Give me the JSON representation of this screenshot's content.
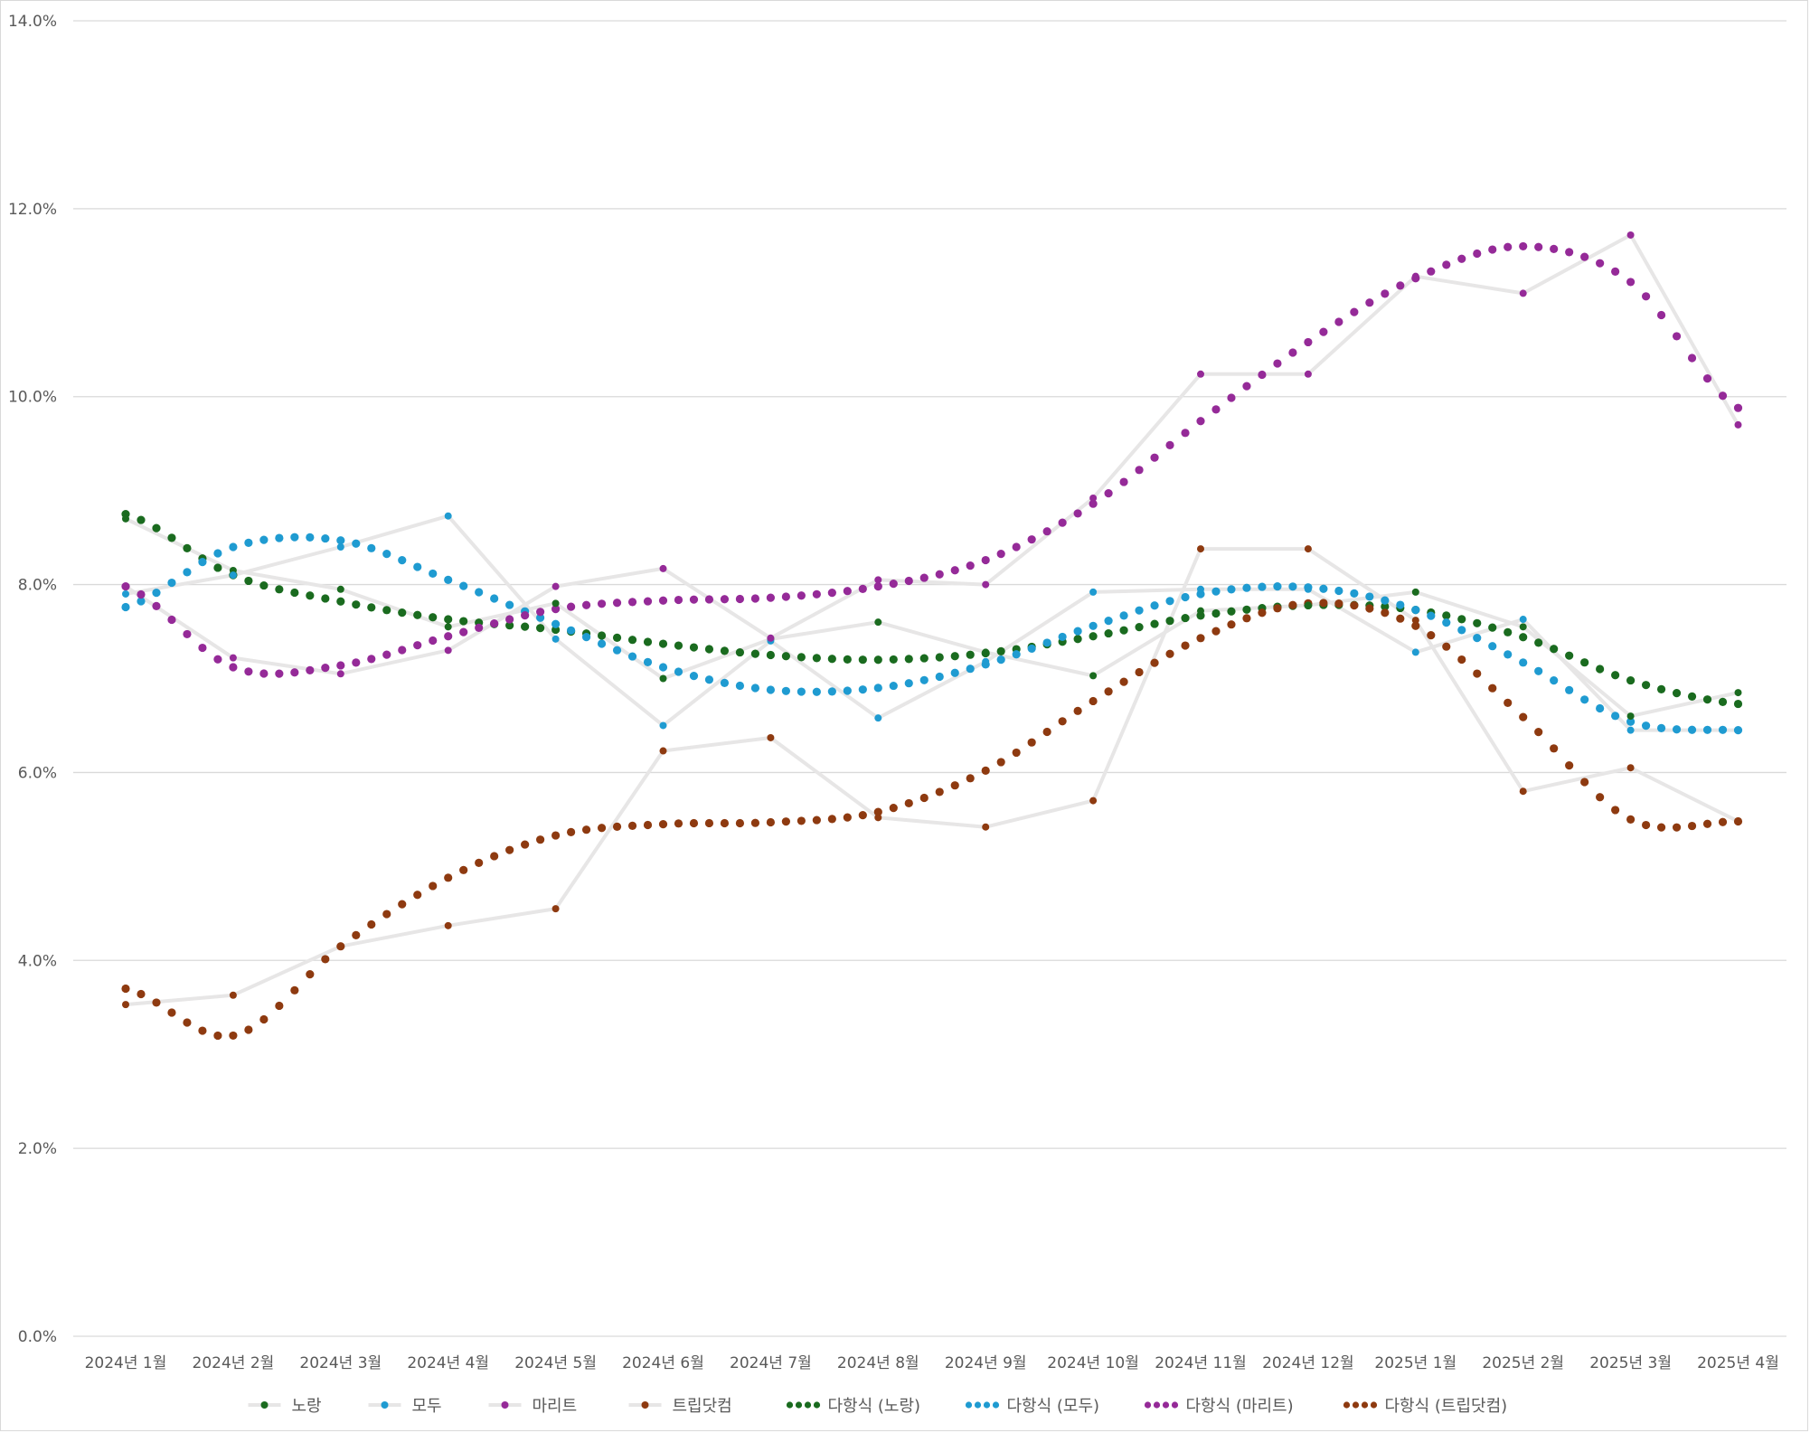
{
  "chart_data": {
    "type": "line",
    "title": "",
    "xlabel": "",
    "ylabel": "",
    "categories": [
      "2024년 1월",
      "2024년 2월",
      "2024년 3월",
      "2024년 4월",
      "2024년 5월",
      "2024년 6월",
      "2024년 7월",
      "2024년 8월",
      "2024년 9월",
      "2024년 10월",
      "2024년 11월",
      "2024년 12월",
      "2025년 1월",
      "2025년 2월",
      "2025년 3월",
      "2025년 4월"
    ],
    "ylim": [
      0,
      14
    ],
    "y_ticks": [
      "0.0%",
      "2.0%",
      "4.0%",
      "6.0%",
      "8.0%",
      "10.0%",
      "12.0%",
      "14.0%"
    ],
    "grid": true,
    "legend_position": "bottom",
    "series": [
      {
        "name": "노랑",
        "color": "#1a6b1f",
        "line_color": "#e7e6e6",
        "values": [
          8.7,
          8.15,
          7.95,
          7.55,
          7.8,
          7.0,
          7.42,
          7.6,
          7.28,
          7.03,
          7.72,
          7.78,
          7.92,
          7.55,
          6.6,
          6.85
        ]
      },
      {
        "name": "모두",
        "color": "#1f9bd1",
        "line_color": "#e7e6e6",
        "values": [
          7.9,
          8.1,
          8.4,
          8.73,
          7.42,
          6.5,
          7.4,
          6.58,
          7.18,
          7.92,
          7.95,
          7.95,
          7.28,
          7.63,
          6.45,
          6.45
        ]
      },
      {
        "name": "마리트",
        "color": "#952a98",
        "line_color": "#e7e6e6",
        "values": [
          7.98,
          7.22,
          7.05,
          7.3,
          7.98,
          8.17,
          7.43,
          8.05,
          8.0,
          8.92,
          10.24,
          10.24,
          11.28,
          11.1,
          11.72,
          9.7
        ]
      },
      {
        "name": "트립닷컴",
        "color": "#8e3a10",
        "line_color": "#e7e6e6",
        "values": [
          3.53,
          3.63,
          4.15,
          4.37,
          4.55,
          6.23,
          6.37,
          5.52,
          5.42,
          5.7,
          8.38,
          8.38,
          7.62,
          5.8,
          6.05,
          5.48
        ]
      },
      {
        "name": "다항식 (노랑)",
        "color": "#1a6b1f",
        "style": "dotted",
        "values": [
          8.75,
          8.1,
          7.82,
          7.63,
          7.52,
          7.37,
          7.25,
          7.2,
          7.27,
          7.45,
          7.67,
          7.78,
          7.73,
          7.44,
          6.98,
          6.73
        ]
      },
      {
        "name": "다항식 (모두)",
        "color": "#1f9bd1",
        "style": "dotted",
        "values": [
          7.76,
          8.4,
          8.47,
          8.05,
          7.58,
          7.12,
          6.88,
          6.9,
          7.15,
          7.56,
          7.9,
          7.97,
          7.73,
          7.17,
          6.54,
          6.45
        ]
      },
      {
        "name": "다항식 (마리트)",
        "color": "#952a98",
        "style": "dotted",
        "values": [
          7.98,
          7.12,
          7.14,
          7.45,
          7.74,
          7.83,
          7.86,
          7.98,
          8.26,
          8.86,
          9.74,
          10.58,
          11.26,
          11.6,
          11.22,
          9.88
        ]
      },
      {
        "name": "다항식 (트립닷컴)",
        "color": "#8e3a10",
        "style": "dotted",
        "values": [
          3.7,
          3.2,
          4.15,
          4.88,
          5.33,
          5.45,
          5.47,
          5.58,
          6.02,
          6.76,
          7.43,
          7.8,
          7.56,
          6.59,
          5.5,
          5.48
        ]
      }
    ]
  }
}
